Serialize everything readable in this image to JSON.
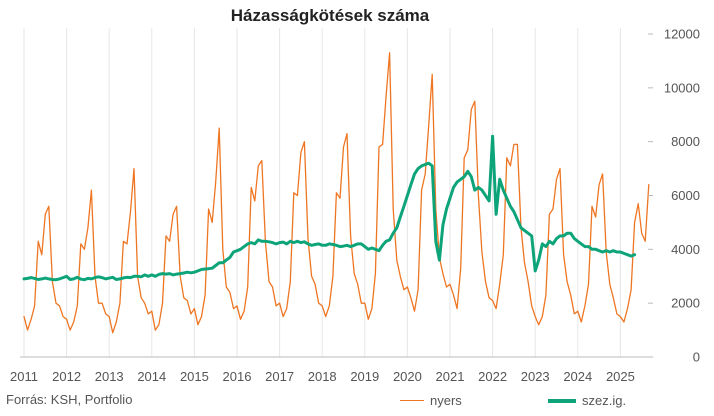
{
  "chart_data": {
    "type": "line",
    "title": "Házasságkötések száma",
    "source": "Forrás: KSH, Portfolio",
    "xlabel": "",
    "ylabel": "",
    "ylim": [
      0,
      12000
    ],
    "y_ticks": [
      0,
      2000,
      4000,
      6000,
      8000,
      10000,
      12000
    ],
    "y_tick_labels": [
      "0",
      "2000",
      "4000",
      "6000",
      "8000",
      "10000",
      "12000"
    ],
    "x_ticks": [
      2011,
      2012,
      2013,
      2014,
      2015,
      2016,
      2017,
      2018,
      2019,
      2020,
      2021,
      2022,
      2023,
      2024,
      2025
    ],
    "x_tick_labels": [
      "2011",
      "2012",
      "2013",
      "2014",
      "2015",
      "2016",
      "2017",
      "2018",
      "2019",
      "2020",
      "2021",
      "2022",
      "2023",
      "2024",
      "2025"
    ],
    "y_axis_position": "right",
    "grid": "vertical",
    "legend": "bottom-right",
    "series": [
      {
        "name": "nyers",
        "color": "#ee7623",
        "period_start": "2011-01",
        "frequency": "monthly",
        "values": [
          1500,
          1000,
          1400,
          1900,
          4300,
          3800,
          5300,
          5600,
          2800,
          2000,
          1900,
          1500,
          1400,
          1000,
          1300,
          1900,
          4200,
          4000,
          4800,
          6200,
          3000,
          2000,
          2000,
          1600,
          1500,
          900,
          1300,
          2000,
          4300,
          4200,
          5400,
          7000,
          3000,
          2200,
          2000,
          1600,
          1700,
          1000,
          1200,
          2000,
          4500,
          4300,
          5300,
          5600,
          3000,
          2200,
          2100,
          1600,
          1800,
          1200,
          1500,
          2300,
          5500,
          5000,
          6500,
          8500,
          4000,
          2600,
          2400,
          1800,
          1900,
          1400,
          1700,
          2600,
          6300,
          5800,
          7100,
          7300,
          4300,
          2800,
          2600,
          1900,
          2000,
          1500,
          1800,
          2800,
          6100,
          6000,
          7600,
          8000,
          4400,
          3000,
          2700,
          2000,
          1900,
          1500,
          1900,
          3000,
          6100,
          5900,
          7800,
          8300,
          4500,
          3100,
          2700,
          2000,
          2000,
          1400,
          1800,
          3100,
          7800,
          7900,
          9700,
          11300,
          5500,
          3600,
          3000,
          2500,
          2600,
          2200,
          1700,
          2500,
          6200,
          6800,
          8600,
          10500,
          5500,
          3700,
          3100,
          2600,
          2700,
          2300,
          1800,
          3300,
          7400,
          7700,
          9200,
          9500,
          6000,
          3900,
          2800,
          2200,
          2100,
          1800,
          2700,
          3800,
          7400,
          7100,
          7900,
          7900,
          4800,
          3500,
          2800,
          1900,
          1500,
          1200,
          1500,
          2300,
          5300,
          5500,
          6600,
          7000,
          3800,
          2800,
          2300,
          1600,
          1700,
          1300,
          1900,
          2700,
          5600,
          5200,
          6400,
          6800,
          3900,
          2700,
          2200,
          1600,
          1500,
          1300,
          1800,
          2500,
          5000,
          5700,
          4600,
          4300,
          6400
        ]
      },
      {
        "name": "szez.ig.",
        "color": "#0ea47a",
        "period_start": "2011-01",
        "frequency": "monthly",
        "values": [
          2900,
          2920,
          2950,
          2920,
          2880,
          2900,
          2930,
          2900,
          2880,
          2870,
          2900,
          2950,
          3000,
          2880,
          2900,
          2960,
          2890,
          2870,
          2920,
          2900,
          2950,
          2980,
          2950,
          2900,
          2930,
          2960,
          2880,
          2900,
          2940,
          2960,
          2950,
          3000,
          3000,
          2980,
          3050,
          3000,
          3050,
          3000,
          3070,
          3100,
          3080,
          3100,
          3050,
          3080,
          3100,
          3120,
          3150,
          3130,
          3150,
          3200,
          3250,
          3270,
          3280,
          3300,
          3400,
          3500,
          3500,
          3600,
          3700,
          3900,
          3950,
          4000,
          4100,
          4200,
          4250,
          4200,
          4350,
          4300,
          4300,
          4280,
          4250,
          4200,
          4250,
          4270,
          4200,
          4300,
          4250,
          4300,
          4250,
          4280,
          4200,
          4150,
          4180,
          4200,
          4150,
          4150,
          4200,
          4180,
          4150,
          4100,
          4120,
          4150,
          4100,
          4150,
          4200,
          4200,
          4100,
          4000,
          4050,
          4000,
          3950,
          4150,
          4300,
          4350,
          4600,
          4800,
          5200,
          5600,
          6000,
          6400,
          6800,
          7000,
          7100,
          7150,
          7200,
          7100,
          4300,
          3600,
          4900,
          5500,
          5900,
          6300,
          6500,
          6600,
          6700,
          6900,
          6700,
          6200,
          6300,
          6200,
          6000,
          5800,
          8200,
          5300,
          6600,
          6200,
          5900,
          5600,
          5400,
          5100,
          4800,
          4700,
          4600,
          4500,
          3200,
          3600,
          4200,
          4100,
          4300,
          4200,
          4400,
          4500,
          4500,
          4600,
          4600,
          4400,
          4300,
          4200,
          4100,
          4100,
          4000,
          4000,
          3950,
          3900,
          3950,
          3900,
          3950,
          3900,
          3900,
          3850,
          3800,
          3750,
          3800
        ]
      }
    ]
  }
}
